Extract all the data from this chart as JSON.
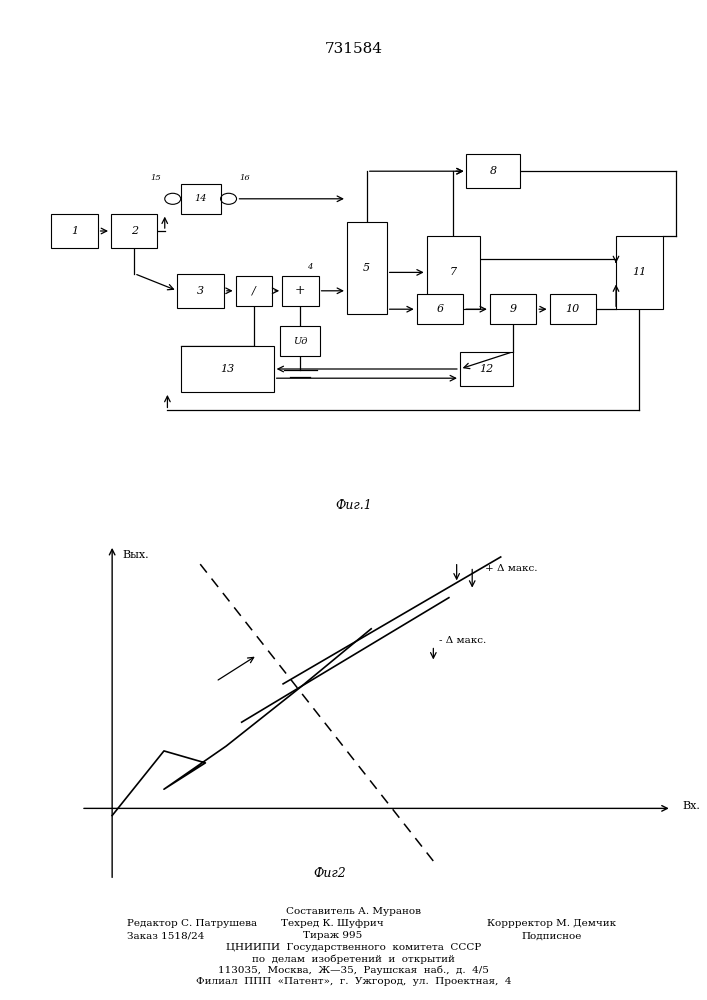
{
  "title": "731584",
  "fig1_label": "Фиг.1",
  "fig2_label": "Фиг2",
  "background_color": "#ffffff",
  "line_color": "#000000"
}
